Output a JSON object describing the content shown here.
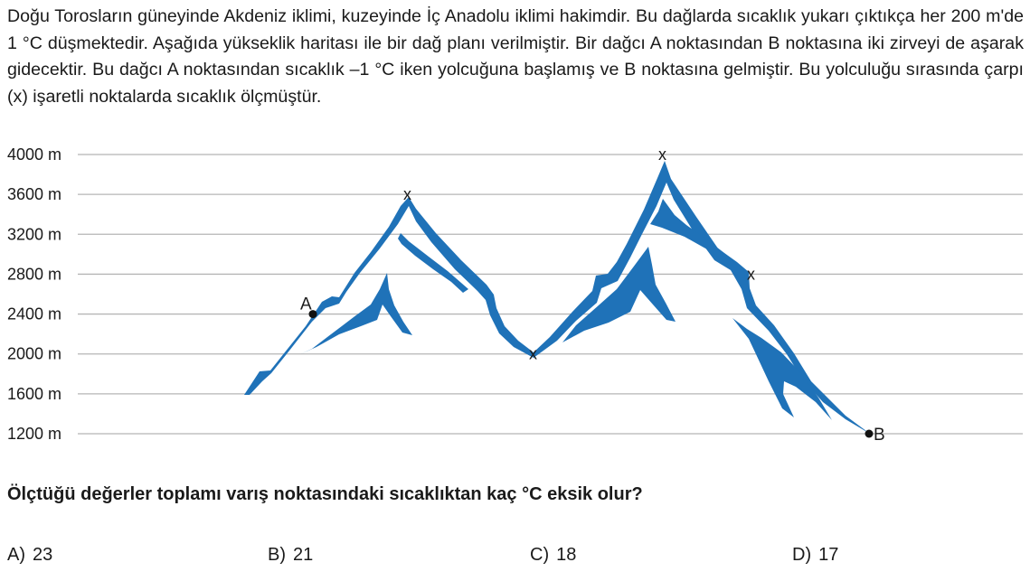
{
  "intro": {
    "text": "Doğu Torosların güneyinde Akdeniz iklimi, kuzeyinde İç Anadolu iklimi hakimdir. Bu dağlarda sıcaklık yukarı çıktıkça her 200 m'de 1 °C düşmektedir. Aşağıda yükseklik haritası ile bir dağ planı verilmiştir. Bir dağcı A noktasından B noktasına iki zirveyi de aşarak gidecektir.  Bu dağcı A noktasından sıcaklık –1 °C iken yolcuğuna başlamış ve B noktasına gelmiştir. Bu yolculuğu sırasında çarpı (x) işaretli noktalarda sıcaklık ölçmüştür."
  },
  "diagram": {
    "elevation_labels": [
      "4000 m",
      "3600 m",
      "3200 m",
      "2800 m",
      "2400 m",
      "2000 m",
      "1600 m",
      "1200 m"
    ],
    "elevations_m": [
      4000,
      3600,
      3200,
      2800,
      2400,
      2000,
      1600,
      1200
    ],
    "start_point": {
      "label": "A",
      "elevation_m": 2400
    },
    "end_point": {
      "label": "B",
      "elevation_m": 1200
    },
    "measurement_marker": "x",
    "measurement_elevations_m": [
      3600,
      2000,
      4000,
      2800
    ],
    "mountain_color": "#1f72b8",
    "gridline_color": "#b5b5b5"
  },
  "question": "Ölçtüğü değerler toplamı varış noktasındaki sıcaklıktan kaç °C eksik olur?",
  "options": [
    {
      "letter": "A)",
      "value": "23"
    },
    {
      "letter": "B)",
      "value": "21"
    },
    {
      "letter": "C)",
      "value": "18"
    },
    {
      "letter": "D)",
      "value": "17"
    }
  ]
}
